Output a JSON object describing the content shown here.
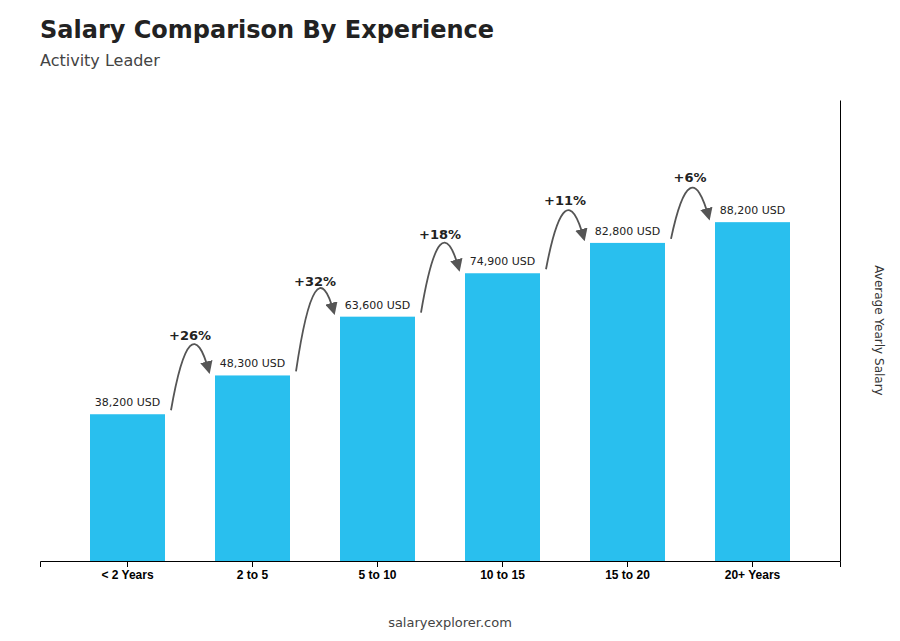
{
  "chart_data": {
    "type": "bar",
    "title": "Salary Comparison By Experience",
    "subtitle": "Activity Leader",
    "categories": [
      "< 2 Years",
      "2 to 5",
      "5 to 10",
      "10 to 15",
      "15 to 20",
      "20+ Years"
    ],
    "values": [
      38200,
      48300,
      63600,
      74900,
      82800,
      88200
    ],
    "value_labels": [
      "38,200 USD",
      "48,300 USD",
      "63,600 USD",
      "74,900 USD",
      "82,800 USD",
      "88,200 USD"
    ],
    "data_labels": true,
    "annotations": [
      "+26%",
      "+32%",
      "+18%",
      "+11%",
      "+6%"
    ],
    "ylabel": "Average Yearly Salary",
    "footer": "salaryexplorer.com",
    "color": "#29BFEE",
    "ylim": [
      0,
      120000
    ],
    "tick_labels": "x"
  }
}
